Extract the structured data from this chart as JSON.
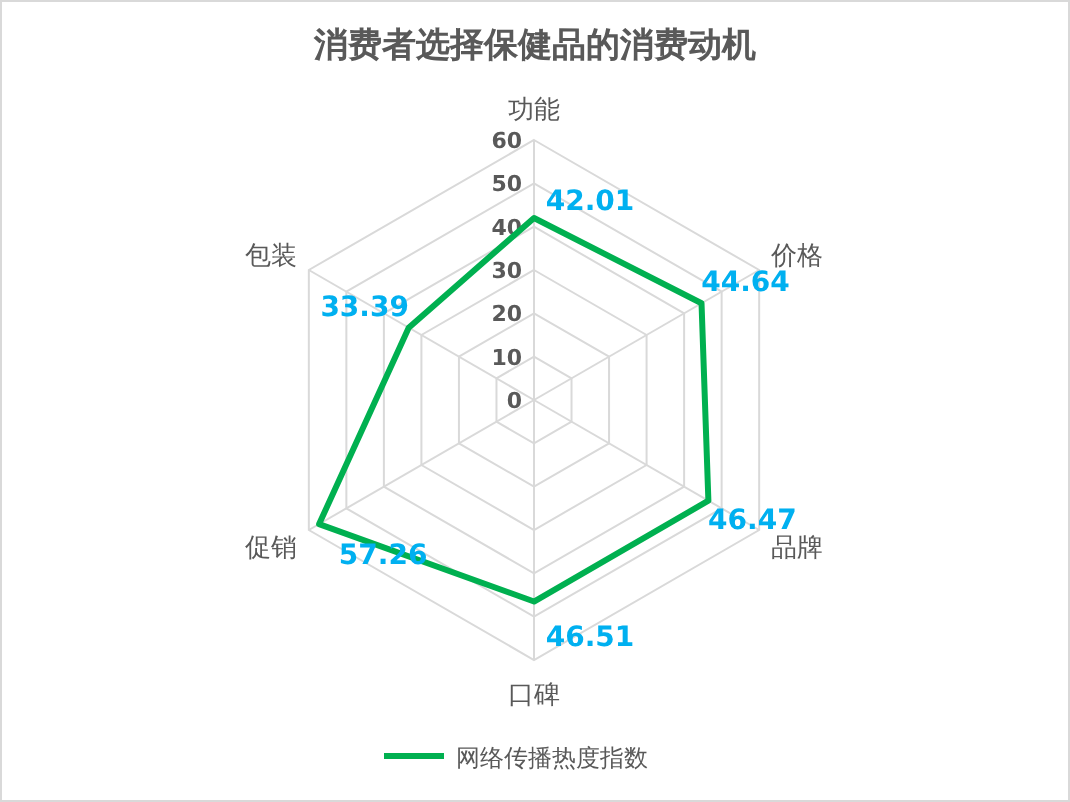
{
  "chart_data": {
    "type": "radar",
    "title": "消费者选择保健品的消费动机",
    "categories": [
      "功能",
      "价格",
      "品牌",
      "口碑",
      "促销",
      "包装"
    ],
    "series": [
      {
        "name": "网络传播热度指数",
        "color": "#00b050",
        "values": [
          42.01,
          44.64,
          46.47,
          46.51,
          57.26,
          33.39
        ]
      }
    ],
    "ylim": [
      0,
      60
    ],
    "yticks": [
      0,
      10,
      20,
      30,
      40,
      50,
      60
    ],
    "data_labels": true,
    "legend": "bottom",
    "grid": true
  }
}
